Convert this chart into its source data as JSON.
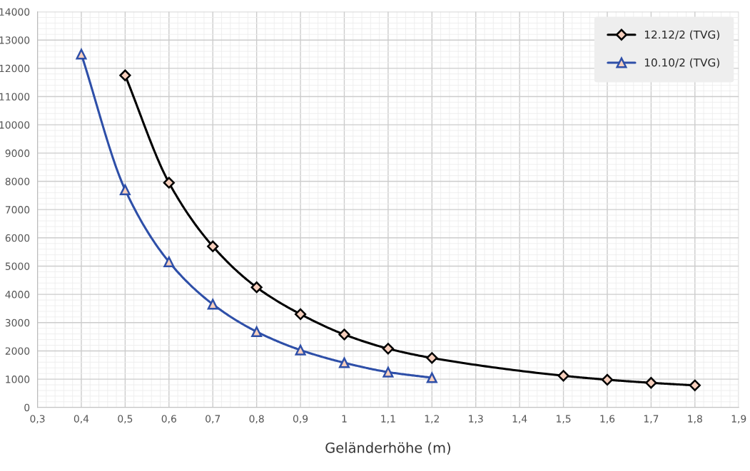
{
  "chart_data": {
    "type": "line",
    "xlabel": "Geländerhöhe (m)",
    "xlim": [
      0.3,
      1.9
    ],
    "ylim": [
      0,
      14000
    ],
    "xticks": [
      {
        "value": 0.3,
        "label": "0,3"
      },
      {
        "value": 0.4,
        "label": "0,4"
      },
      {
        "value": 0.5,
        "label": "0,5"
      },
      {
        "value": 0.6,
        "label": "0,6"
      },
      {
        "value": 0.7,
        "label": "0,7"
      },
      {
        "value": 0.8,
        "label": "0,8"
      },
      {
        "value": 0.9,
        "label": "0,9"
      },
      {
        "value": 1,
        "label": "1"
      },
      {
        "value": 1.1,
        "label": "1,1"
      },
      {
        "value": 1.2,
        "label": "1,2"
      },
      {
        "value": 1.3,
        "label": "1,3"
      },
      {
        "value": 1.4,
        "label": "1,4"
      },
      {
        "value": 1.5,
        "label": "1,5"
      },
      {
        "value": 1.6,
        "label": "1,6"
      },
      {
        "value": 1.7,
        "label": "1,7"
      },
      {
        "value": 1.8,
        "label": "1,8"
      },
      {
        "value": 1.9,
        "label": "1,9"
      }
    ],
    "yticks": [
      0,
      1000,
      2000,
      3000,
      4000,
      5000,
      6000,
      7000,
      8000,
      9000,
      10000,
      11000,
      12000,
      13000,
      14000
    ],
    "grid": true,
    "legend": "top right",
    "series": [
      {
        "name": "12.12/2 (TVG)",
        "color": "#000000",
        "marker": "diamond",
        "x": [
          0.5,
          0.6,
          0.7,
          0.8,
          0.9,
          1.0,
          1.1,
          1.2,
          1.5,
          1.6,
          1.7,
          1.8
        ],
        "values": [
          11750,
          7950,
          5700,
          4250,
          3300,
          2580,
          2080,
          1750,
          1120,
          980,
          870,
          780
        ]
      },
      {
        "name": "10.10/2 (TVG)",
        "color": "#2e4fa8",
        "marker": "triangle",
        "x": [
          0.4,
          0.5,
          0.6,
          0.7,
          0.8,
          0.9,
          1.0,
          1.1,
          1.2
        ],
        "values": [
          12500,
          7700,
          5150,
          3650,
          2680,
          2030,
          1580,
          1250,
          1050
        ]
      }
    ]
  }
}
